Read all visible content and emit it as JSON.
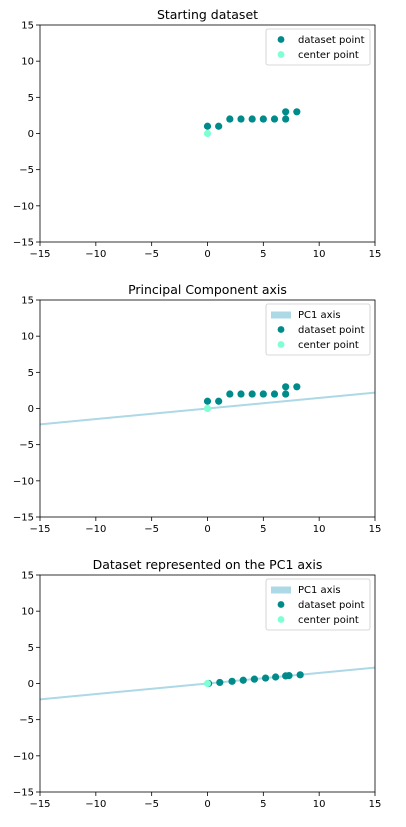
{
  "chart_data": [
    {
      "type": "scatter",
      "title": "Starting dataset",
      "xlim": [
        -15,
        15
      ],
      "ylim": [
        -15,
        15
      ],
      "xticks": [
        "−15",
        "−10",
        "−5",
        "0",
        "5",
        "10",
        "15"
      ],
      "yticks": [
        "15",
        "10",
        "5",
        "0",
        "−5",
        "−10",
        "−15"
      ],
      "grid": false,
      "legend": "top-right",
      "series": [
        {
          "name": "dataset point",
          "kind": "points",
          "color": "#008b8b",
          "points": [
            [
              0,
              1
            ],
            [
              1,
              1
            ],
            [
              2,
              2
            ],
            [
              3,
              2
            ],
            [
              4,
              2
            ],
            [
              5,
              2
            ],
            [
              6,
              2
            ],
            [
              7,
              2
            ],
            [
              7,
              3
            ],
            [
              8,
              3
            ]
          ]
        },
        {
          "name": "center point",
          "kind": "points",
          "color": "#7fffd4",
          "points": [
            [
              0,
              0
            ]
          ]
        }
      ]
    },
    {
      "type": "scatter",
      "title": "Principal Component axis",
      "xlim": [
        -15,
        15
      ],
      "ylim": [
        -15,
        15
      ],
      "xticks": [
        "−15",
        "−10",
        "−5",
        "0",
        "5",
        "10",
        "15"
      ],
      "yticks": [
        "15",
        "10",
        "5",
        "0",
        "−5",
        "−10",
        "−15"
      ],
      "grid": false,
      "legend": "top-right",
      "series": [
        {
          "name": "PC1 axis",
          "kind": "line",
          "color": "#add8e6",
          "points": [
            [
              -15,
              -2.2
            ],
            [
              15,
              2.2
            ]
          ]
        },
        {
          "name": "dataset point",
          "kind": "points",
          "color": "#008b8b",
          "points": [
            [
              0,
              1
            ],
            [
              1,
              1
            ],
            [
              2,
              2
            ],
            [
              3,
              2
            ],
            [
              4,
              2
            ],
            [
              5,
              2
            ],
            [
              6,
              2
            ],
            [
              7,
              2
            ],
            [
              7,
              3
            ],
            [
              8,
              3
            ]
          ]
        },
        {
          "name": "center point",
          "kind": "points",
          "color": "#7fffd4",
          "points": [
            [
              0,
              0
            ]
          ]
        }
      ]
    },
    {
      "type": "scatter",
      "title": "Dataset represented on the PC1 axis",
      "xlim": [
        -15,
        15
      ],
      "ylim": [
        -15,
        15
      ],
      "xticks": [
        "−15",
        "−10",
        "−5",
        "0",
        "5",
        "10",
        "15"
      ],
      "yticks": [
        "15",
        "10",
        "5",
        "0",
        "−5",
        "−10",
        "−15"
      ],
      "grid": false,
      "legend": "top-right",
      "series": [
        {
          "name": "PC1 axis",
          "kind": "line",
          "color": "#add8e6",
          "points": [
            [
              -15,
              -2.2
            ],
            [
              15,
              2.2
            ]
          ]
        },
        {
          "name": "dataset point",
          "kind": "points",
          "color": "#008b8b",
          "points": [
            [
              0.1,
              0
            ],
            [
              1.1,
              0.15
            ],
            [
              2.2,
              0.3
            ],
            [
              3.2,
              0.45
            ],
            [
              4.2,
              0.6
            ],
            [
              5.2,
              0.75
            ],
            [
              6.1,
              0.9
            ],
            [
              7.0,
              1.05
            ],
            [
              7.3,
              1.1
            ],
            [
              8.3,
              1.2
            ]
          ]
        },
        {
          "name": "center point",
          "kind": "points",
          "color": "#7fffd4",
          "points": [
            [
              0,
              0
            ]
          ]
        }
      ]
    }
  ]
}
